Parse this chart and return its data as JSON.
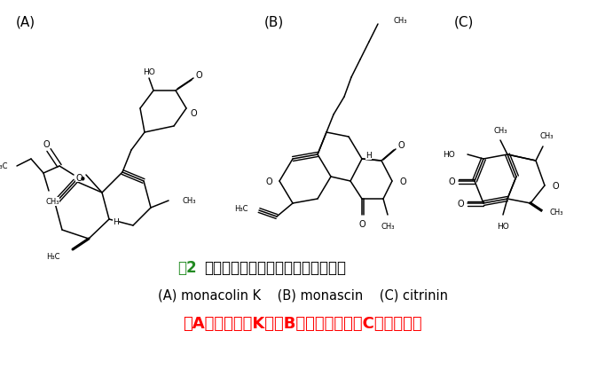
{
  "title_fig": "図2",
  "title_rest": "　紅鹹菌が作る二次代謝物の構造式",
  "line2": "(Ａ) monacolin K　（B）monascin　（C）citrinin",
  "line3": "（A）莫纳可林K　（B）红曲霉素　（C）桔青霉素",
  "label_A": "(A)",
  "label_B": "(B)",
  "label_C": "(C)",
  "bg_color": "#ffffff",
  "title_color": "#000000",
  "fig2_color": "#228B22",
  "line2_color": "#000000",
  "line3_color": "#ff0000",
  "label_color": "#000000"
}
